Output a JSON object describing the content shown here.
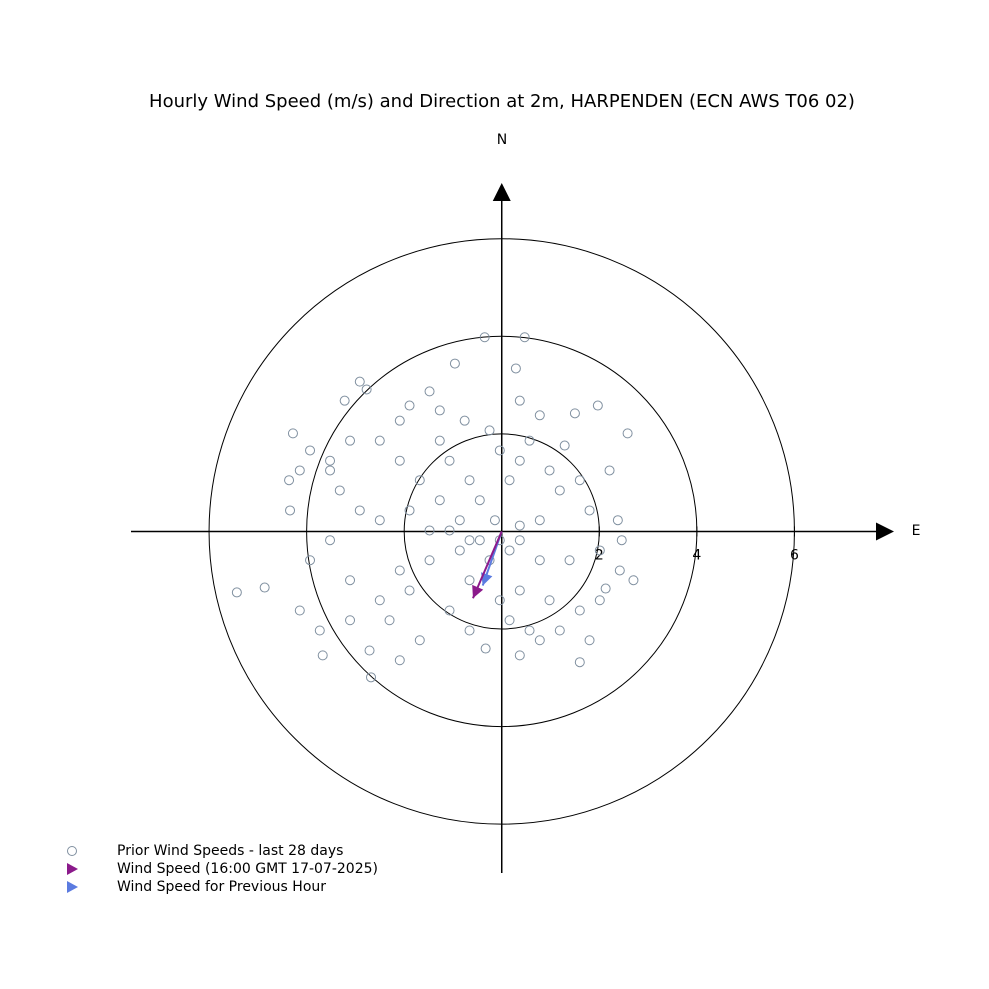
{
  "chart_data": {
    "type": "scatter",
    "title": "Hourly Wind Speed (m/s) and Direction at 2m, HARPENDEN (ECN AWS T06 02)",
    "y_axis_label": "N",
    "x_axis_label": "E",
    "xlim": [
      -7.6,
      8.0
    ],
    "ylim": [
      -7,
      7.1
    ],
    "xticks": [
      2,
      4,
      6
    ],
    "series": [
      {
        "name": "Prior Wind Speeds - last 28 days",
        "color": "#8090a0",
        "x": [
          -0.35,
          0.47,
          -0.96,
          0.29,
          -2.77,
          1.97,
          1.5,
          2.58,
          -4.28,
          -4.36,
          -4.34,
          -5.43,
          -4.86,
          2.7,
          2.46,
          2.38,
          1.6,
          -2.68,
          -3.67,
          -0.33,
          0.37,
          2.13,
          -4.14,
          -3.52,
          -3.22,
          -1.89,
          -1.27,
          -0.76,
          0.78,
          0.37,
          1.29,
          2.21,
          1.19,
          1.8,
          0.78,
          0.37,
          -0.14,
          -0.45,
          -0.86,
          -1.48,
          -2.09,
          -2.5,
          -3.11,
          -1.68,
          -1.07,
          0.37,
          0.98,
          1.6,
          1.19,
          0.78,
          -0.04,
          -0.66,
          -1.27,
          -1.68,
          -2.09,
          -2.5,
          -2.91,
          -3.52,
          -3.93,
          -3.11,
          -1.07,
          -0.66,
          0.37,
          0.57,
          0.98,
          1.6,
          2.01,
          1.39,
          0.78,
          0.16,
          -0.25,
          -0.86,
          -1.48,
          -1.89,
          -2.5,
          -3.32,
          -3.93,
          -4.14,
          -3.73,
          -2.71,
          -2.09,
          -2.3,
          -1.89,
          -0.66,
          0.16,
          0.57,
          1.8,
          2.01,
          2.42,
          -0.04,
          -0.25,
          0.16,
          -0.45,
          -1.07,
          -0.66,
          -0.04,
          0.37,
          -3.11,
          -3.52,
          -2.91,
          -2.09,
          -1.27,
          -1.48
        ],
        "y": [
          3.98,
          3.98,
          3.44,
          3.34,
          2.91,
          2.58,
          2.42,
          2.01,
          2.01,
          1.05,
          0.43,
          -1.25,
          -1.15,
          -1.0,
          -0.18,
          0.23,
          -2.68,
          -2.99,
          -2.54,
          -2.4,
          -2.54,
          -1.17,
          -1.62,
          1.25,
          2.68,
          2.58,
          2.48,
          2.27,
          2.38,
          2.68,
          1.76,
          1.25,
          0.84,
          0.43,
          0.23,
          0.12,
          0.23,
          -0.18,
          -0.39,
          -0.59,
          -0.8,
          -1.41,
          -1.82,
          -2.23,
          -1.62,
          -1.21,
          -1.41,
          -1.62,
          -2.03,
          -2.23,
          -1.41,
          -1.0,
          0.64,
          1.05,
          1.45,
          1.86,
          0.43,
          -0.18,
          -0.59,
          -1.0,
          1.45,
          1.05,
          1.45,
          1.86,
          1.25,
          1.05,
          -0.39,
          -0.59,
          -0.59,
          -0.39,
          -0.59,
          0.23,
          0.02,
          0.43,
          0.23,
          0.84,
          1.66,
          1.25,
          -2.03,
          -2.44,
          -2.64,
          -1.82,
          -1.21,
          -2.03,
          -1.82,
          -2.03,
          -2.23,
          -1.41,
          -0.8,
          1.66,
          2.07,
          1.05,
          0.64,
          0.02,
          -0.18,
          -0.18,
          -0.18,
          1.86,
          1.45,
          3.07,
          2.27,
          1.86,
          2.87
        ]
      },
      {
        "name": "Wind Speed (16:00 GMT 17-07-2025)",
        "color": "#8b1a8b",
        "x": [
          -0.59
        ],
        "y": [
          -1.37
        ]
      },
      {
        "name": "Wind Speed for Previous Hour",
        "color": "#5b7be0",
        "x": [
          -0.39
        ],
        "y": [
          -1.11
        ]
      }
    ]
  }
}
